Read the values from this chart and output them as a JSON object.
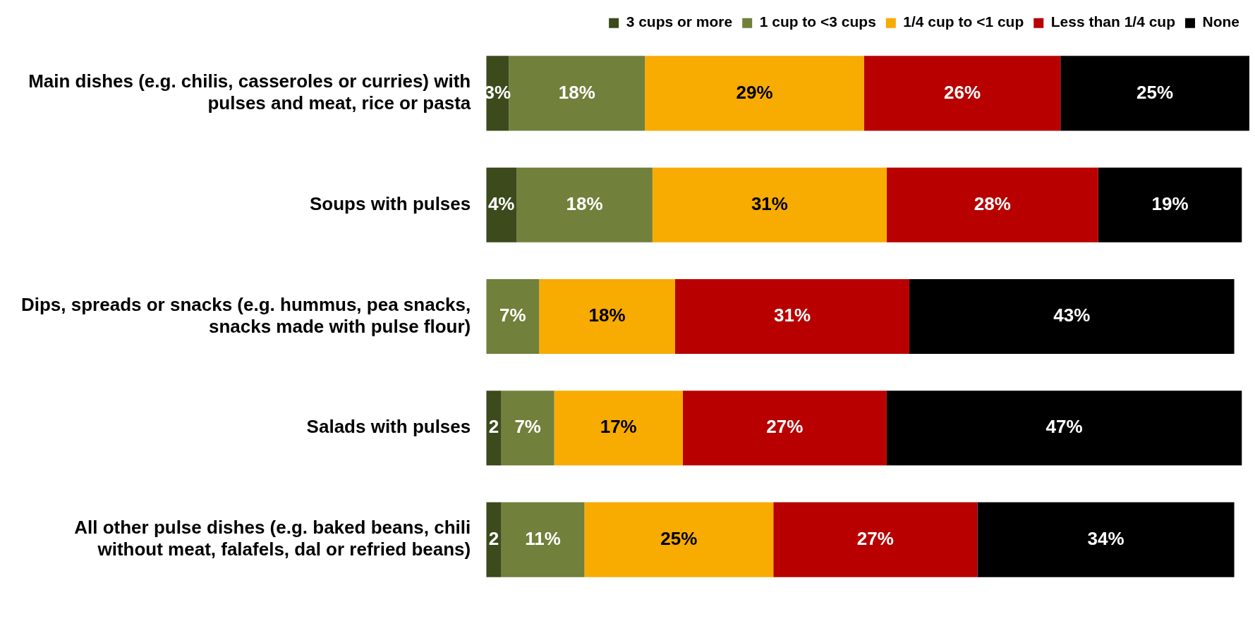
{
  "chart_data": {
    "type": "bar",
    "orientation": "horizontal",
    "stacked": true,
    "legend": "top right",
    "tick_labels": "y",
    "grid": false,
    "categories": [
      "Main dishes (e.g. chilis, casseroles or curries) with pulses and meat, rice or pasta",
      "Soups with pulses",
      "Dips, spreads or snacks (e.g. hummus, pea snacks, snacks made with pulse flour)",
      "Salads with pulses",
      "All other pulse dishes (e.g. baked beans, chili without meat, falafels, dal or refried beans)"
    ],
    "series": [
      {
        "name": "3 cups or more",
        "color": "#3c4a1c",
        "values": [
          3,
          4,
          null,
          2,
          2
        ],
        "value_labels": [
          "3%",
          "4%",
          null,
          "2",
          "2"
        ]
      },
      {
        "name": "1 cup to <3 cups",
        "color": "#71803b",
        "values": [
          18,
          18,
          7,
          7,
          11
        ],
        "value_labels": [
          "18%",
          "18%",
          "7%",
          "7%",
          "11%"
        ]
      },
      {
        "name": "1/4 cup to <1 cup",
        "color": "#f8ab00",
        "values": [
          29,
          31,
          18,
          17,
          25
        ],
        "value_labels": [
          "29%",
          "31%",
          "18%",
          "17%",
          "25%"
        ]
      },
      {
        "name": "Less than 1/4 cup",
        "color": "#b80000",
        "values": [
          26,
          28,
          31,
          27,
          27
        ],
        "value_labels": [
          "26%",
          "28%",
          "31%",
          "27%",
          "27%"
        ]
      },
      {
        "name": "None",
        "color": "#000000",
        "values": [
          25,
          19,
          43,
          47,
          34
        ],
        "value_labels": [
          "25%",
          "19%",
          "43%",
          "47%",
          "34%"
        ]
      }
    ]
  }
}
